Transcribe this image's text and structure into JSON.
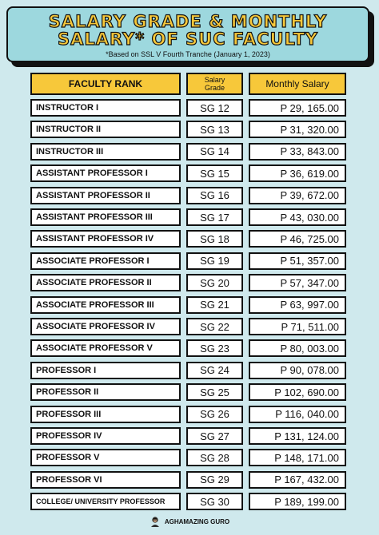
{
  "header": {
    "title_line1": "Salary Grade & Monthly",
    "title_line2": "Salary* of SUC Faculty",
    "subtitle": "*Based on SSL V Fourth Tranche (January 1, 2023)"
  },
  "table": {
    "col_rank": "FACULTY RANK",
    "col_grade_line1": "Salary",
    "col_grade_line2": "Grade",
    "col_salary": "Monthly Salary",
    "rows": [
      {
        "rank": "INSTRUCTOR I",
        "grade": "SG 12",
        "salary": "P 29, 165.00"
      },
      {
        "rank": "INSTRUCTOR II",
        "grade": "SG 13",
        "salary": "P 31, 320.00"
      },
      {
        "rank": "INSTRUCTOR III",
        "grade": "SG 14",
        "salary": "P 33, 843.00"
      },
      {
        "rank": "ASSISTANT PROFESSOR I",
        "grade": "SG 15",
        "salary": "P 36, 619.00"
      },
      {
        "rank": "ASSISTANT PROFESSOR II",
        "grade": "SG 16",
        "salary": "P 39, 672.00"
      },
      {
        "rank": "ASSISTANT PROFESSOR III",
        "grade": "SG 17",
        "salary": "P 43, 030.00"
      },
      {
        "rank": "ASSISTANT PROFESSOR IV",
        "grade": "SG 18",
        "salary": "P 46, 725.00"
      },
      {
        "rank": "ASSOCIATE PROFESSOR I",
        "grade": "SG 19",
        "salary": "P 51, 357.00"
      },
      {
        "rank": "ASSOCIATE PROFESSOR II",
        "grade": "SG 20",
        "salary": "P 57, 347.00"
      },
      {
        "rank": "ASSOCIATE PROFESSOR III",
        "grade": "SG 21",
        "salary": "P 63, 997.00"
      },
      {
        "rank": "ASSOCIATE PROFESSOR IV",
        "grade": "SG 22",
        "salary": "P 71, 511.00"
      },
      {
        "rank": "ASSOCIATE PROFESSOR V",
        "grade": "SG 23",
        "salary": "P 80, 003.00"
      },
      {
        "rank": "PROFESSOR I",
        "grade": "SG 24",
        "salary": "P 90, 078.00"
      },
      {
        "rank": "PROFESSOR II",
        "grade": "SG 25",
        "salary": "P 102, 690.00"
      },
      {
        "rank": "PROFESSOR III",
        "grade": "SG 26",
        "salary": "P 116, 040.00"
      },
      {
        "rank": "PROFESSOR IV",
        "grade": "SG 27",
        "salary": "P 131, 124.00"
      },
      {
        "rank": "PROFESSOR V",
        "grade": "SG 28",
        "salary": "P 148, 171.00"
      },
      {
        "rank": "PROFESSOR VI",
        "grade": "SG 29",
        "salary": "P 167, 432.00"
      },
      {
        "rank": "COLLEGE/ UNIVERSITY PROFESSOR",
        "grade": "SG 30",
        "salary": "P 189, 199.00"
      }
    ]
  },
  "footer": {
    "brand": "AGHAMAZING GURO",
    "icon": "avatar-icon"
  },
  "colors": {
    "background": "#cfe9ed",
    "banner": "#9dd8de",
    "accent_yellow": "#f7c83a",
    "border": "#111111"
  }
}
